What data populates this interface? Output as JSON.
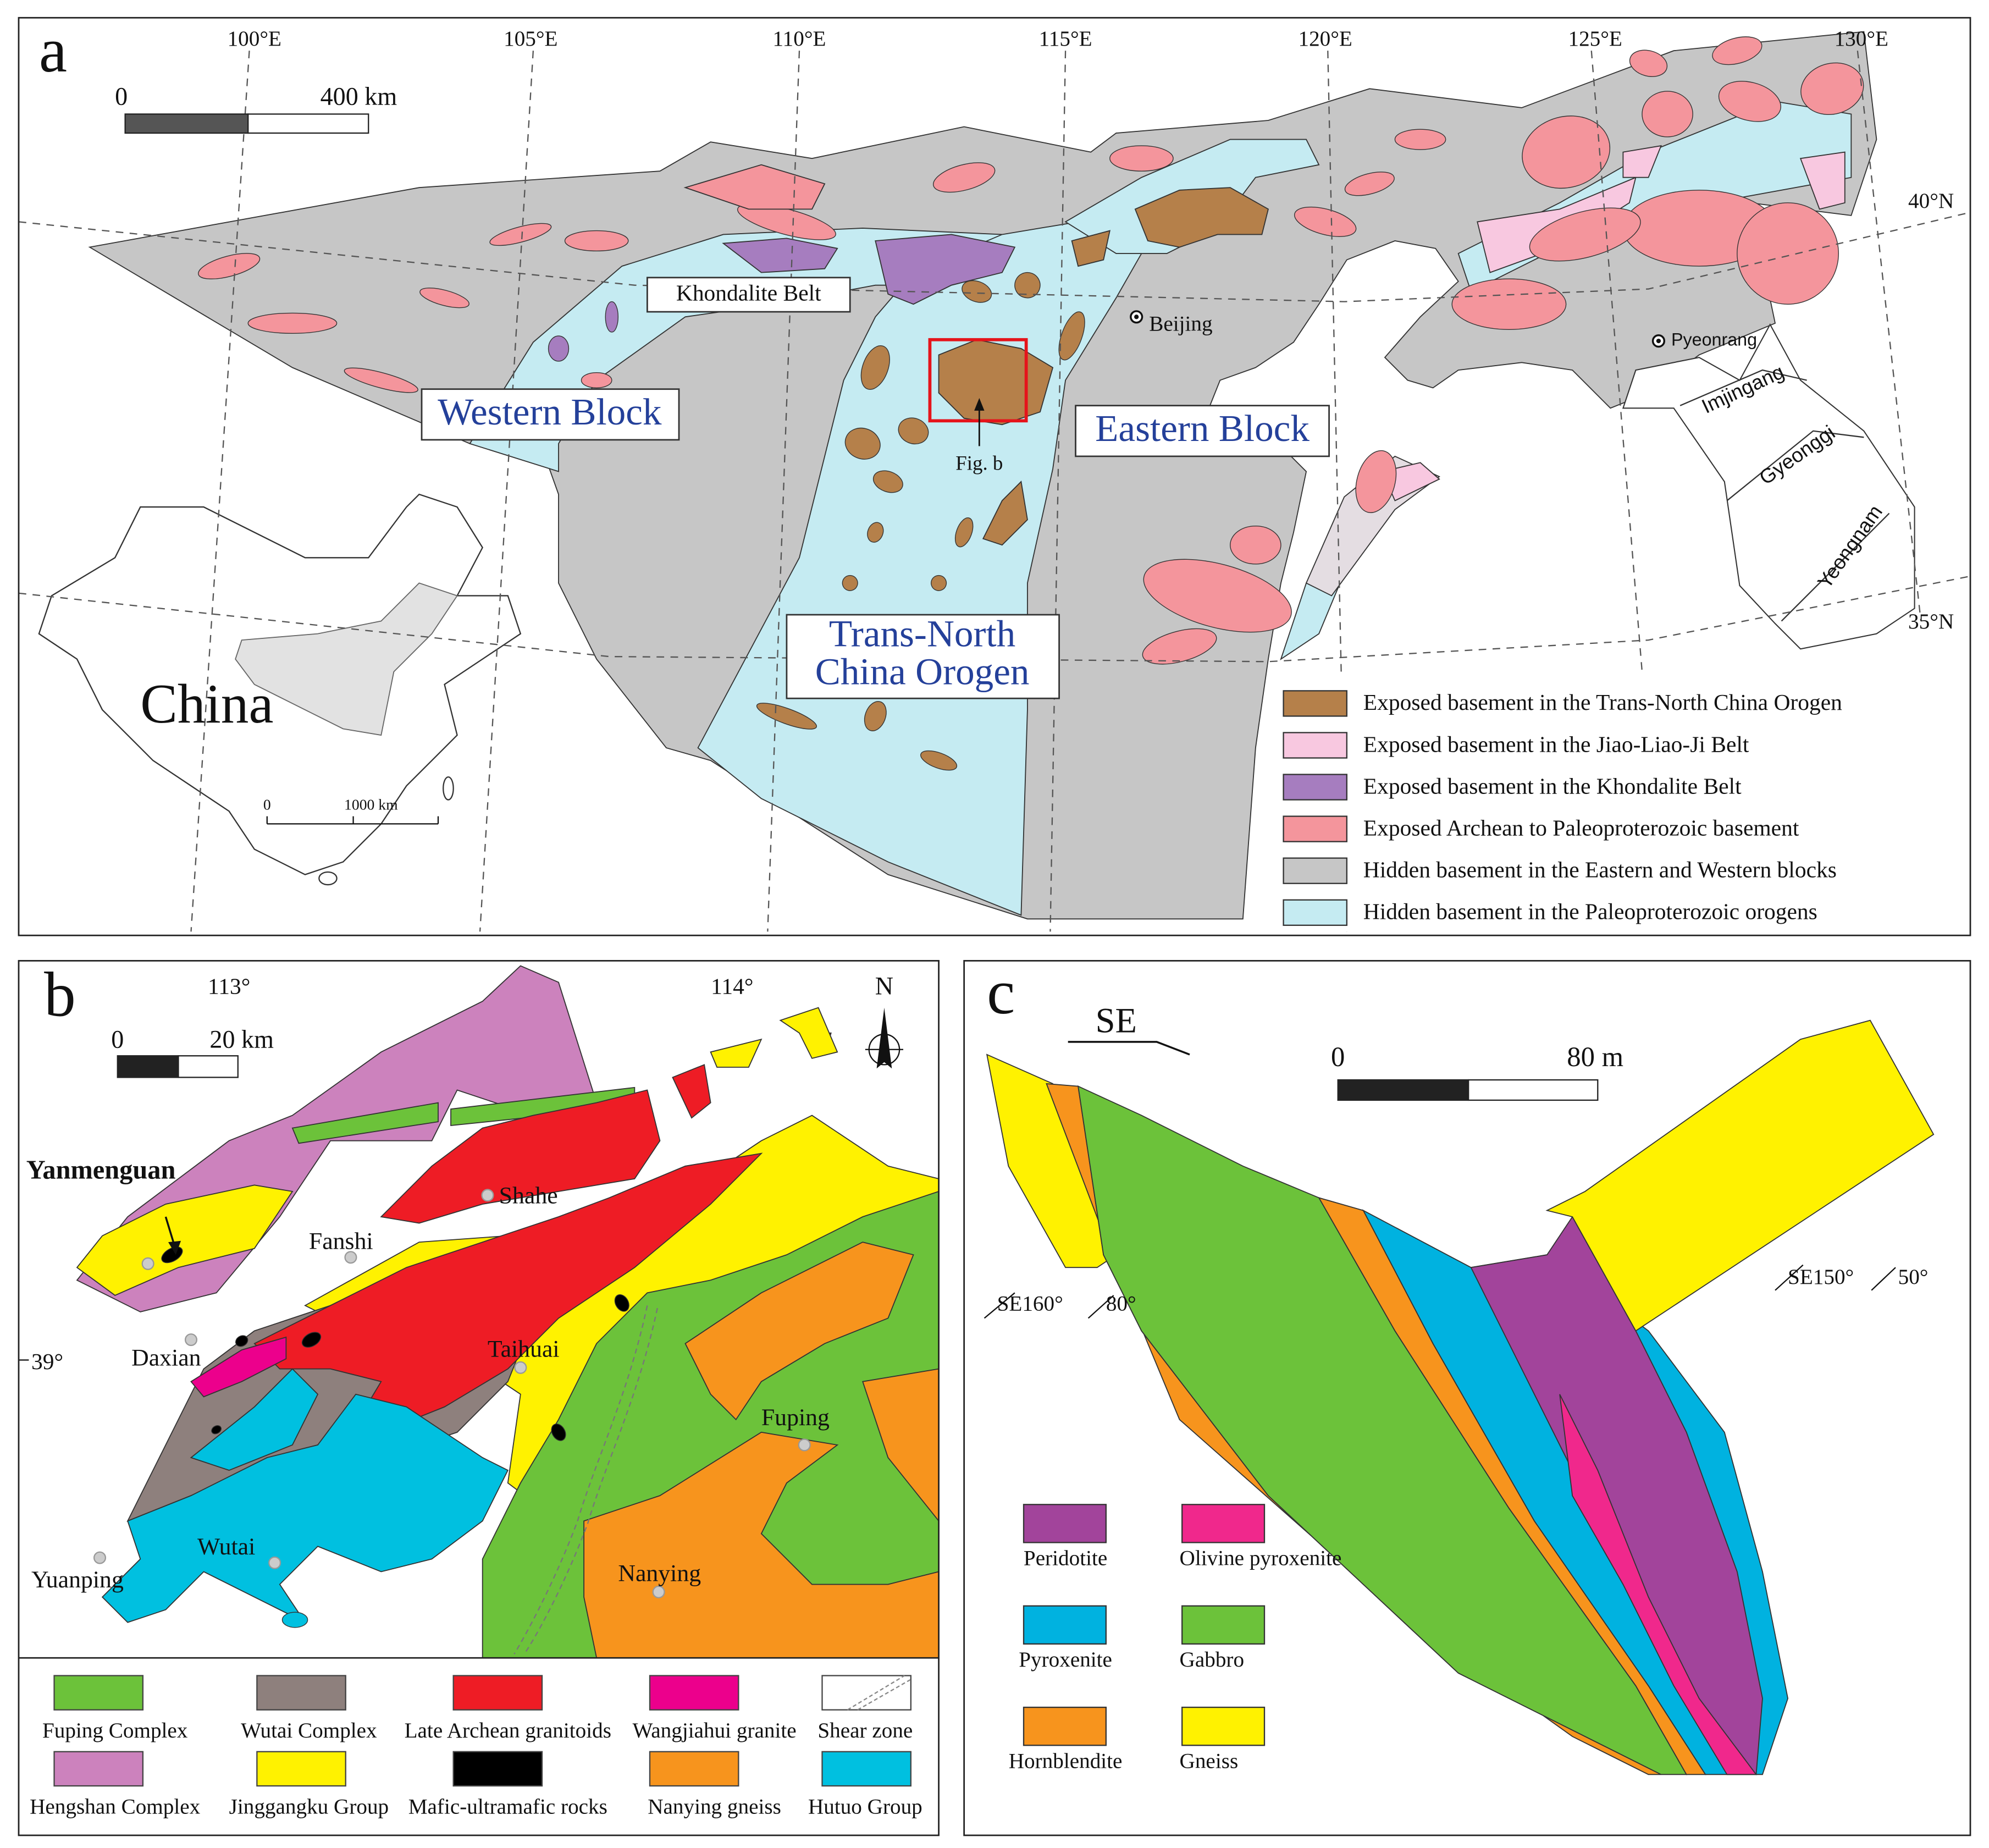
{
  "panel_a": {
    "label": "a",
    "scale_bar": {
      "start": "0",
      "end": "400 km"
    },
    "longitudes": [
      "100°E",
      "105°E",
      "110°E",
      "115°E",
      "120°E",
      "125°E",
      "130°E"
    ],
    "latitudes": [
      "40°N",
      "35°N"
    ],
    "khondalite_belt": "Khondalite Belt",
    "western_block": "Western Block",
    "eastern_block": "Eastern Block",
    "tnco": [
      "Trans-North",
      "China Orogen"
    ],
    "places": [
      "Beijing",
      "Pyeonrang"
    ],
    "korea_belts": [
      "Imjingang",
      "Gyeonggi",
      "Yeongnam"
    ],
    "figure_ref": "Fig. b",
    "inset": {
      "label": "China",
      "scale_start": "0",
      "scale_end": "1000 km"
    },
    "legend": [
      {
        "label": "Exposed basement in the Trans-North China Orogen",
        "color": "#b5804a"
      },
      {
        "label": "Exposed basement in the Jiao-Liao-Ji Belt",
        "color": "#f8c8e0"
      },
      {
        "label": "Exposed basement in the Khondalite Belt",
        "color": "#a67dbf"
      },
      {
        "label": "Exposed Archean to Paleoproterozoic basement",
        "color": "#f4959c"
      },
      {
        "label": "Hidden basement in the Eastern and Western blocks",
        "color": "#c6c6c6"
      },
      {
        "label": "Hidden basement in the Paleoproterozoic orogens",
        "color": "#c5ebf2"
      }
    ]
  },
  "panel_b": {
    "label": "b",
    "longitudes": [
      "113°",
      "114°"
    ],
    "latitudes": [
      "39°"
    ],
    "scale_bar": {
      "start": "0",
      "end": "20 km"
    },
    "north": "N",
    "places": [
      "Yanmenguan",
      "Shahe",
      "Fanshi",
      "Daxian",
      "Taihuai",
      "Fuping",
      "Wutai",
      "Yuanping",
      "Nanying"
    ],
    "legend": [
      {
        "label": "Fuping Complex",
        "color": "#6cc23a"
      },
      {
        "label": "Wutai Complex",
        "color": "#8e807d"
      },
      {
        "label": "Late Archean granitoids",
        "color": "#ee1c25"
      },
      {
        "label": "Wangjiahui granite",
        "color": "#ec008c"
      },
      {
        "label": "Shear zone",
        "color": "#ffffff"
      },
      {
        "label": "Hengshan Complex",
        "color": "#cc82bd"
      },
      {
        "label": "Jinggangku Group",
        "color": "#fff200"
      },
      {
        "label": "Mafic-ultramafic rocks",
        "color": "#000000"
      },
      {
        "label": "Nanying gneiss",
        "color": "#f7941d"
      },
      {
        "label": "Hutuo Group",
        "color": "#00c0e0"
      }
    ]
  },
  "panel_c": {
    "label": "c",
    "direction": "SE",
    "scale_bar": {
      "start": "0",
      "end": "80 m"
    },
    "attitudes": [
      {
        "dip_direction": "SE160°",
        "dip": "80°"
      },
      {
        "dip_direction": "SE150°",
        "dip": "50°"
      }
    ],
    "legend": [
      {
        "label": "Peridotite",
        "color": "#a2449b"
      },
      {
        "label": "Olivine pyroxenite",
        "color": "#f0288c"
      },
      {
        "label": "Pyroxenite",
        "color": "#00b2e0"
      },
      {
        "label": "Gabbro",
        "color": "#6cc23a"
      },
      {
        "label": "Hornblendite",
        "color": "#f7941d"
      },
      {
        "label": "Gneiss",
        "color": "#fff200"
      }
    ]
  }
}
